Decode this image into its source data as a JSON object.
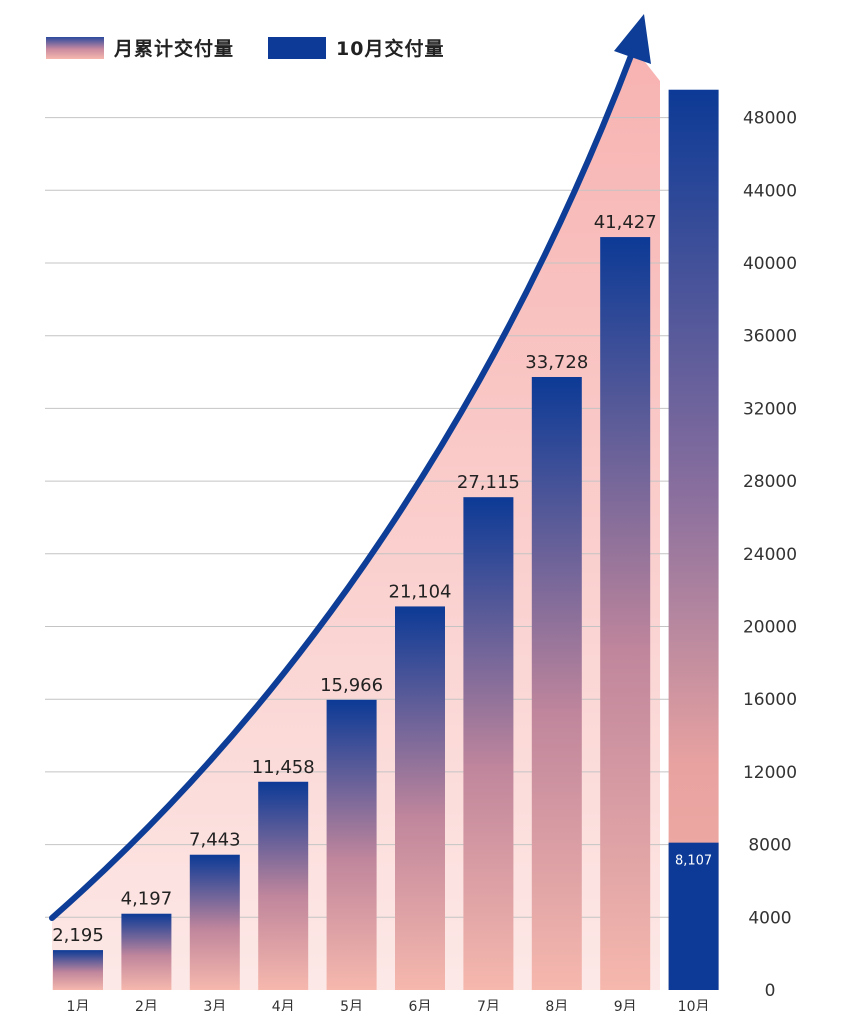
{
  "legend": {
    "cumulative_label": "月累计交付量",
    "october_label": "10月交付量"
  },
  "colors": {
    "bar_top": "#0c3a96",
    "bar_bottom": "#f6b8ad",
    "area": "#f8b6ae",
    "arrow": "#0d3d96",
    "grid": "#c4c4c4"
  },
  "chart_data": {
    "type": "bar",
    "categories": [
      "1月",
      "2月",
      "3月",
      "4月",
      "5月",
      "6月",
      "7月",
      "8月",
      "9月",
      "10月"
    ],
    "series": [
      {
        "name": "月累计交付量",
        "values": [
          2195,
          4197,
          7443,
          11458,
          15966,
          21104,
          27115,
          33728,
          41427,
          49534
        ],
        "labels": [
          "2,195",
          "4,197",
          "7,443",
          "11,458",
          "15,966",
          "21,104",
          "27,115",
          "33,728",
          "41,427",
          ""
        ]
      },
      {
        "name": "10月交付量",
        "values": [
          null,
          null,
          null,
          null,
          null,
          null,
          null,
          null,
          null,
          8107
        ],
        "labels": [
          "",
          "",
          "",
          "",
          "",
          "",
          "",
          "",
          "",
          "8,107"
        ]
      }
    ],
    "yticks": [
      0,
      4000,
      8000,
      12000,
      16000,
      20000,
      24000,
      28000,
      32000,
      36000,
      40000,
      44000,
      48000
    ],
    "ylim": [
      0,
      50000
    ],
    "y_axis_position": "right",
    "grid": true,
    "legend_position": "top-left",
    "trend_arrow": true
  }
}
